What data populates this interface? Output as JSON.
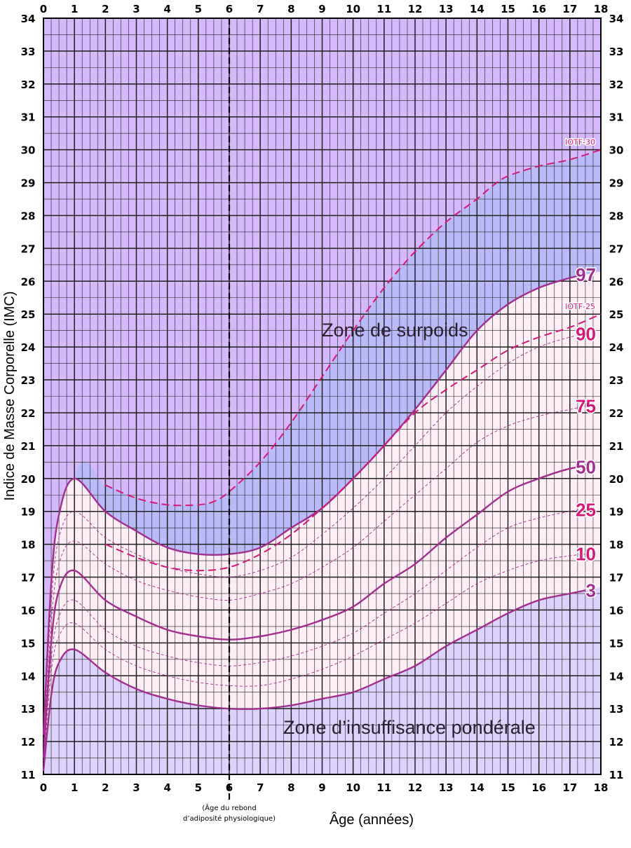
{
  "chart_data": {
    "type": "line",
    "xlabel": "Âge (années)",
    "ylabel": "Indice de Masse Corporelle (IMC)",
    "xlim": [
      0,
      18
    ],
    "ylim": [
      11,
      34
    ],
    "x_ticks": [
      0,
      1,
      2,
      3,
      4,
      5,
      6,
      7,
      8,
      9,
      10,
      11,
      12,
      13,
      14,
      15,
      16,
      17,
      18
    ],
    "y_ticks": [
      11,
      12,
      13,
      14,
      15,
      16,
      17,
      18,
      19,
      20,
      21,
      22,
      23,
      24,
      25,
      26,
      27,
      28,
      29,
      30,
      31,
      32,
      33,
      34
    ],
    "grid": true,
    "zones": {
      "overweight_label": "Zone de surpoids",
      "underweight_label": "Zone d’insuffisance pondérale"
    },
    "rebound_marker": {
      "x": 6,
      "label_line1": "(Âge du rebond",
      "label_line2": "d’adiposité physiologique)"
    },
    "colors": {
      "upper_zone": "#d6b9fb",
      "overweight_zone": "#babaf8",
      "normal_zone": "#fdeef6",
      "lower_zone": "#dcd2fb",
      "percentile_line": "#a22d8e",
      "iotf_line": "#d4187a",
      "grid": "#1e1e1e"
    },
    "x": [
      0,
      0.25,
      0.5,
      1,
      2,
      3,
      4,
      5,
      6,
      7,
      8,
      9,
      10,
      11,
      12,
      13,
      14,
      15,
      16,
      17,
      17.5
    ],
    "series": [
      {
        "name": "97",
        "style": "solid",
        "values": [
          12.2,
          16.8,
          18.9,
          20.0,
          19.0,
          18.4,
          17.9,
          17.7,
          17.7,
          17.9,
          18.5,
          19.1,
          20.0,
          21.0,
          22.1,
          23.3,
          24.5,
          25.3,
          25.8,
          26.1,
          26.2
        ]
      },
      {
        "name": "90",
        "style": "dashed",
        "values": [
          11.9,
          16.2,
          18.2,
          19.0,
          18.2,
          17.7,
          17.3,
          17.1,
          17.0,
          17.2,
          17.6,
          18.3,
          19.1,
          20.0,
          21.0,
          22.0,
          22.8,
          23.5,
          24.0,
          24.3,
          24.4
        ]
      },
      {
        "name": "75",
        "style": "dashed",
        "values": [
          11.7,
          15.6,
          17.4,
          18.1,
          17.4,
          16.9,
          16.6,
          16.4,
          16.3,
          16.5,
          16.8,
          17.3,
          17.9,
          18.7,
          19.5,
          20.3,
          21.1,
          21.6,
          21.9,
          22.1,
          22.2
        ]
      },
      {
        "name": "50",
        "style": "solid",
        "values": [
          11.5,
          15.0,
          16.6,
          17.2,
          16.3,
          15.8,
          15.4,
          15.2,
          15.1,
          15.2,
          15.4,
          15.7,
          16.1,
          16.8,
          17.4,
          18.2,
          18.9,
          19.6,
          20.0,
          20.3,
          20.35
        ]
      },
      {
        "name": "25",
        "style": "dashed",
        "values": [
          11.4,
          14.5,
          15.8,
          16.3,
          15.4,
          14.9,
          14.6,
          14.4,
          14.3,
          14.4,
          14.6,
          14.9,
          15.3,
          15.9,
          16.5,
          17.2,
          17.9,
          18.5,
          18.8,
          19.0,
          19.05
        ]
      },
      {
        "name": "10",
        "style": "dashed",
        "values": [
          11.3,
          14.1,
          15.2,
          15.6,
          14.8,
          14.3,
          14.0,
          13.8,
          13.7,
          13.7,
          13.9,
          14.2,
          14.6,
          15.1,
          15.6,
          16.2,
          16.8,
          17.2,
          17.5,
          17.65,
          17.7
        ]
      },
      {
        "name": "3",
        "style": "solid",
        "values": [
          11.1,
          13.4,
          14.4,
          14.8,
          14.1,
          13.6,
          13.3,
          13.1,
          13.0,
          13.0,
          13.1,
          13.3,
          13.5,
          13.9,
          14.3,
          14.9,
          15.4,
          15.9,
          16.3,
          16.5,
          16.6
        ]
      }
    ],
    "iotf": [
      {
        "name": "IOTF-30",
        "style": "dashed",
        "x": [
          2,
          3,
          4,
          5,
          5.5,
          6,
          7,
          8,
          9,
          10,
          11,
          12,
          13,
          14,
          14.5,
          15,
          16,
          17,
          18
        ],
        "values": [
          19.8,
          19.4,
          19.2,
          19.2,
          19.3,
          19.6,
          20.5,
          21.7,
          23.1,
          24.5,
          25.8,
          26.9,
          27.8,
          28.5,
          28.9,
          29.2,
          29.5,
          29.7,
          30.0
        ]
      },
      {
        "name": "IOTF-25",
        "style": "dashed",
        "x": [
          2,
          3,
          4,
          5,
          6,
          7,
          8,
          9,
          10,
          11,
          12,
          13,
          14,
          15,
          16,
          17,
          18
        ],
        "values": [
          18.0,
          17.6,
          17.3,
          17.2,
          17.3,
          17.7,
          18.3,
          19.1,
          20.0,
          21.0,
          22.0,
          22.7,
          23.3,
          23.9,
          24.3,
          24.6,
          25.0
        ]
      }
    ]
  }
}
